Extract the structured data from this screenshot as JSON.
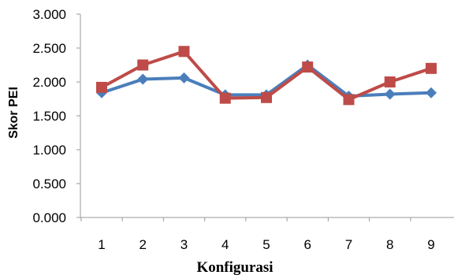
{
  "chart_data": {
    "type": "line",
    "title": "",
    "xlabel": "Konfigurasi",
    "ylabel": "Skor PEI",
    "categories": [
      "1",
      "2",
      "3",
      "4",
      "5",
      "6",
      "7",
      "8",
      "9"
    ],
    "ytick_labels": [
      "0.000",
      "0.500",
      "1.000",
      "1.500",
      "2.000",
      "2.500",
      "3.000"
    ],
    "ylim": [
      0,
      3
    ],
    "ystep": 0.5,
    "grid": false,
    "legend": "none",
    "series": [
      {
        "color": "#4a7ebb",
        "marker": "diamond",
        "values": [
          1.84,
          2.04,
          2.06,
          1.81,
          1.81,
          2.25,
          1.79,
          1.82,
          1.84
        ]
      },
      {
        "color": "#be4b48",
        "marker": "square",
        "values": [
          1.92,
          2.25,
          2.45,
          1.76,
          1.77,
          2.22,
          1.74,
          2.0,
          2.2
        ]
      }
    ]
  }
}
